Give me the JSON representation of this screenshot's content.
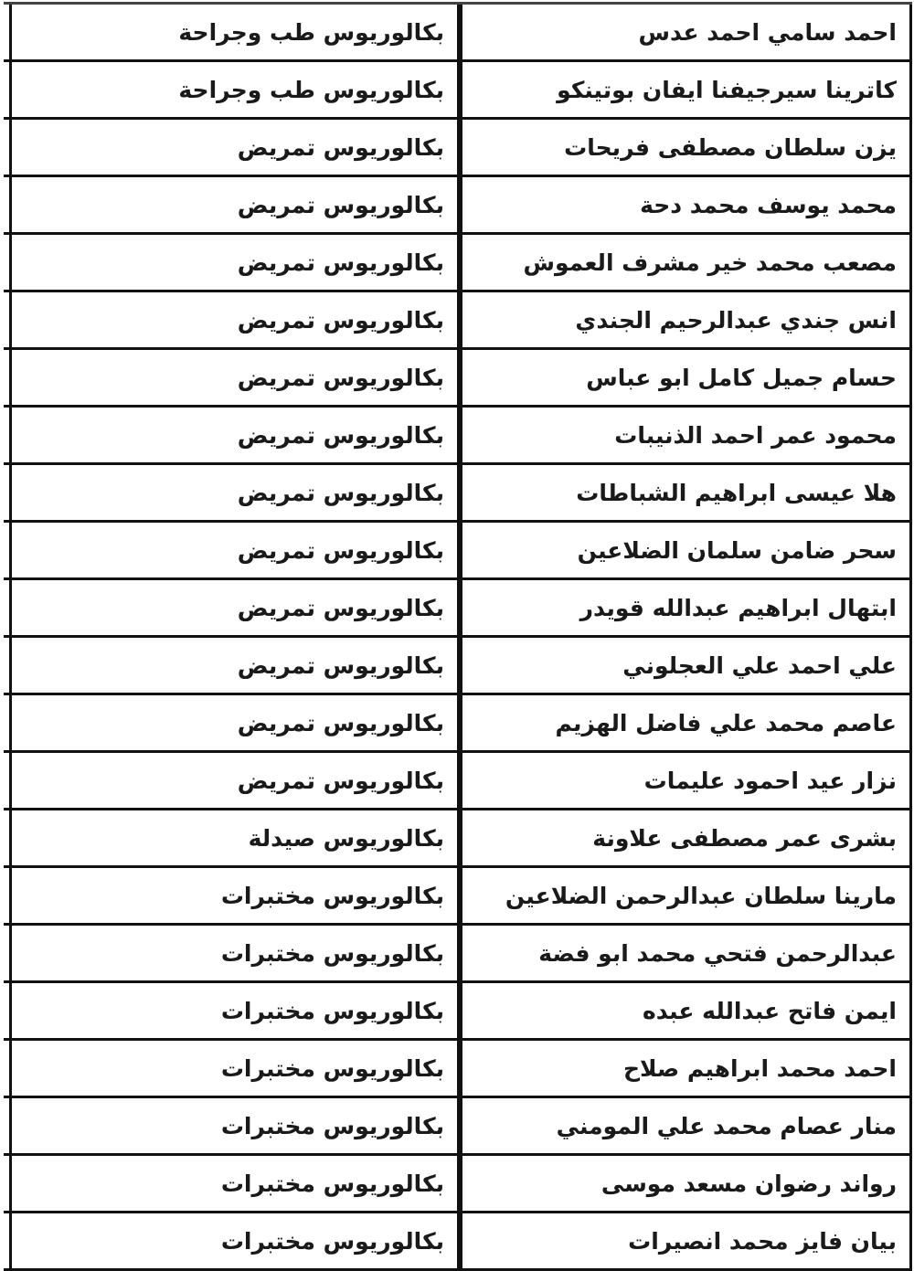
{
  "rows": [
    {
      "name": "احمد سامي احمد عدس",
      "degree": "بكالوريوس طب وجراحة"
    },
    {
      "name": "كاترينا سيرجيفنا ايفان بوتينكو",
      "degree": "بكالوريوس طب وجراحة"
    },
    {
      "name": "يزن سلطان مصطفى فريحات",
      "degree": "بكالوريوس تمريض"
    },
    {
      "name": "محمد يوسف محمد دحة",
      "degree": "بكالوريوس تمريض"
    },
    {
      "name": "مصعب محمد خير مشرف العموش",
      "degree": "بكالوريوس تمريض"
    },
    {
      "name": "انس جندي عبدالرحيم الجندي",
      "degree": "بكالوريوس تمريض"
    },
    {
      "name": "حسام جميل كامل ابو عباس",
      "degree": "بكالوريوس تمريض"
    },
    {
      "name": "محمود عمر احمد الذنيبات",
      "degree": "بكالوريوس تمريض"
    },
    {
      "name": "هلا عيسى ابراهيم الشباطات",
      "degree": "بكالوريوس تمريض"
    },
    {
      "name": "سحر ضامن سلمان الضلاعين",
      "degree": "بكالوريوس تمريض"
    },
    {
      "name": "ابتهال ابراهيم عبدالله قويدر",
      "degree": "بكالوريوس تمريض"
    },
    {
      "name": "علي احمد علي العجلوني",
      "degree": "بكالوريوس تمريض"
    },
    {
      "name": "عاصم محمد علي فاضل الهزيم",
      "degree": "بكالوريوس تمريض"
    },
    {
      "name": "نزار عيد احمود عليمات",
      "degree": "بكالوريوس تمريض"
    },
    {
      "name": "بشرى عمر مصطفى علاونة",
      "degree": "بكالوريوس صيدلة"
    },
    {
      "name": "مارينا سلطان عبدالرحمن الضلاعين",
      "degree": "بكالوريوس مختبرات"
    },
    {
      "name": "عبدالرحمن فتحي محمد ابو فضة",
      "degree": "بكالوريوس مختبرات"
    },
    {
      "name": "ايمن فاتح عبدالله عبده",
      "degree": "بكالوريوس مختبرات"
    },
    {
      "name": "احمد محمد ابراهيم صلاح",
      "degree": "بكالوريوس مختبرات"
    },
    {
      "name": "منار عصام محمد علي المومني",
      "degree": "بكالوريوس مختبرات"
    },
    {
      "name": "رواند رضوان مسعد موسى",
      "degree": "بكالوريوس مختبرات"
    },
    {
      "name": "بيان فايز محمد انصيرات",
      "degree": "بكالوريوس مختبرات"
    }
  ]
}
